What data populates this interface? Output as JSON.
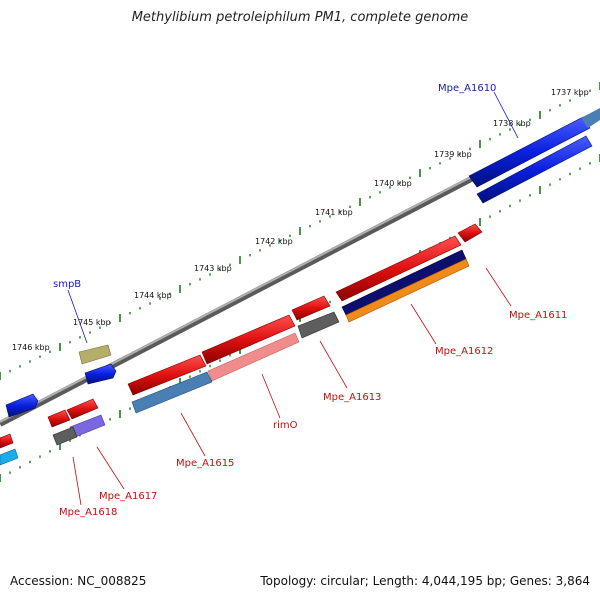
{
  "title": "Methylibium petroleiphilum PM1, complete genome",
  "footer": {
    "accession": "Accession: NC_008825",
    "topology": "Topology: circular; Length: 4,044,195 bp; Genes: 3,864"
  },
  "colors": {
    "forward_gene": "#0a1fe0",
    "reverse_gene": "#e01010",
    "backbone": "#8c8c8c",
    "tick": "#1b7a1b",
    "label_forward": "#1a1ab0",
    "label_reverse": "#c01010"
  },
  "scale_labels": [
    "1737 kbp",
    "1738 kbp",
    "1739 kbp",
    "1740 kbp",
    "1741 kbp",
    "1742 kbp",
    "1743 kbp",
    "1744 kbp",
    "1745 kbp",
    "1746 kbp"
  ],
  "gene_labels": [
    {
      "text": "Mpe_A1610",
      "strand": "forward"
    },
    {
      "text": "smpB",
      "strand": "forward"
    },
    {
      "text": "Mpe_A1611",
      "strand": "reverse"
    },
    {
      "text": "Mpe_A1612",
      "strand": "reverse"
    },
    {
      "text": "Mpe_A1613",
      "strand": "reverse"
    },
    {
      "text": "rimO",
      "strand": "reverse"
    },
    {
      "text": "Mpe_A1615",
      "strand": "reverse"
    },
    {
      "text": "Mpe_A1617",
      "strand": "reverse"
    },
    {
      "text": "Mpe_A1618",
      "strand": "reverse"
    }
  ]
}
